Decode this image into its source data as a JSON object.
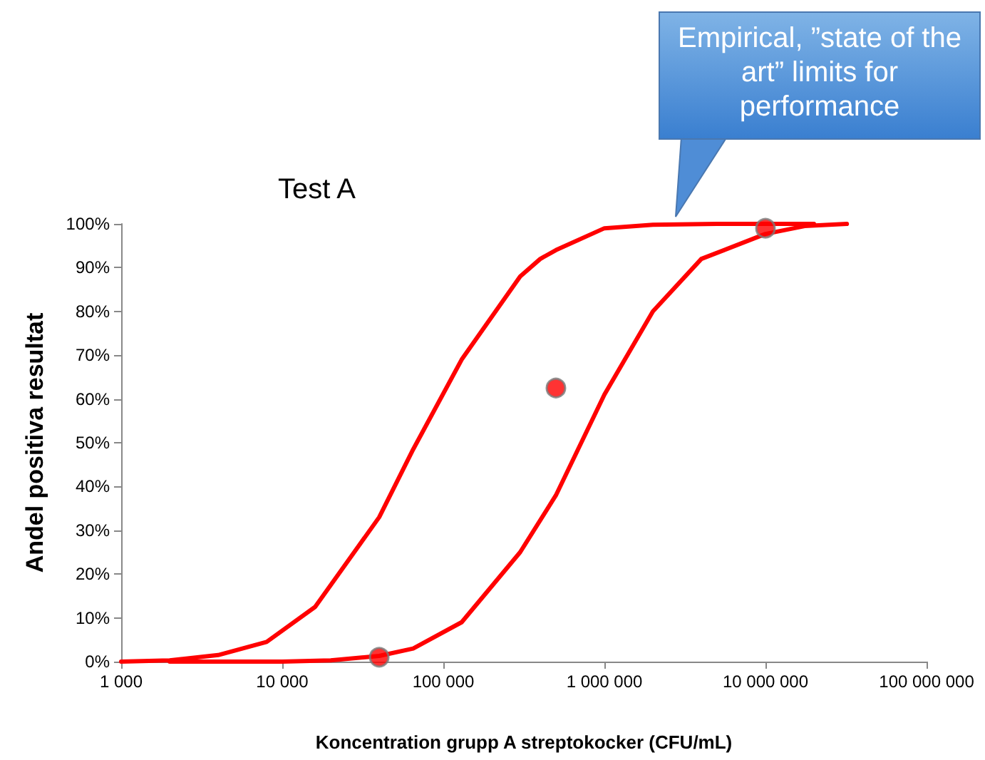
{
  "chart_data": {
    "type": "line",
    "title": "Test A",
    "xlabel": "Koncentration grupp A streptokocker (CFU/mL)",
    "ylabel": "Andel positiva resultat",
    "annotations": [
      "Empirical, ”state of the art” limits for performance"
    ],
    "series": [
      {
        "color": "#ff0000",
        "x": [
          1000,
          2000,
          4000,
          8000,
          16000,
          40000,
          65000,
          130000,
          300000,
          400000,
          500000,
          1000000,
          2000000,
          5000000,
          20000000
        ],
        "values": [
          0,
          0.3,
          1.5,
          4.5,
          12.5,
          33,
          48.5,
          69,
          88,
          92,
          94,
          99,
          99.8,
          100,
          100
        ]
      },
      {
        "color": "#ff0000",
        "x": [
          2000,
          10000,
          20000,
          40000,
          65000,
          130000,
          300000,
          500000,
          1000000,
          2000000,
          4000000,
          10000000,
          17500000,
          32000000
        ],
        "values": [
          0,
          0,
          0.3,
          1.3,
          3,
          9,
          25,
          38,
          61,
          80,
          92,
          97.7,
          99.5,
          100
        ]
      },
      {
        "type": "scatter",
        "marker": "circle",
        "color": "#ff0000",
        "x": [
          40000,
          500000,
          10000000
        ],
        "values": [
          1,
          62.5,
          99
        ]
      }
    ],
    "log": "x",
    "xlim": [
      1000,
      100000000
    ],
    "xticks": [
      {
        "value": 1000,
        "label": "1 000"
      },
      {
        "value": 10000,
        "label": "10 000"
      },
      {
        "value": 100000,
        "label": "100 000"
      },
      {
        "value": 1000000,
        "label": "1 000 000"
      },
      {
        "value": 10000000,
        "label": "10 000 000"
      },
      {
        "value": 100000000,
        "label": "100 000 000"
      }
    ],
    "ylim": [
      0,
      100
    ],
    "yticks": [
      {
        "value": 0,
        "label": "0%"
      },
      {
        "value": 10,
        "label": "10%"
      },
      {
        "value": 20,
        "label": "20%"
      },
      {
        "value": 30,
        "label": "30%"
      },
      {
        "value": 40,
        "label": "40%"
      },
      {
        "value": 50,
        "label": "50%"
      },
      {
        "value": 60,
        "label": "60%"
      },
      {
        "value": 70,
        "label": "70%"
      },
      {
        "value": 80,
        "label": "80%"
      },
      {
        "value": 90,
        "label": "90%"
      },
      {
        "value": 100,
        "label": "100%"
      }
    ],
    "marker": "none",
    "line_style": "solid"
  }
}
